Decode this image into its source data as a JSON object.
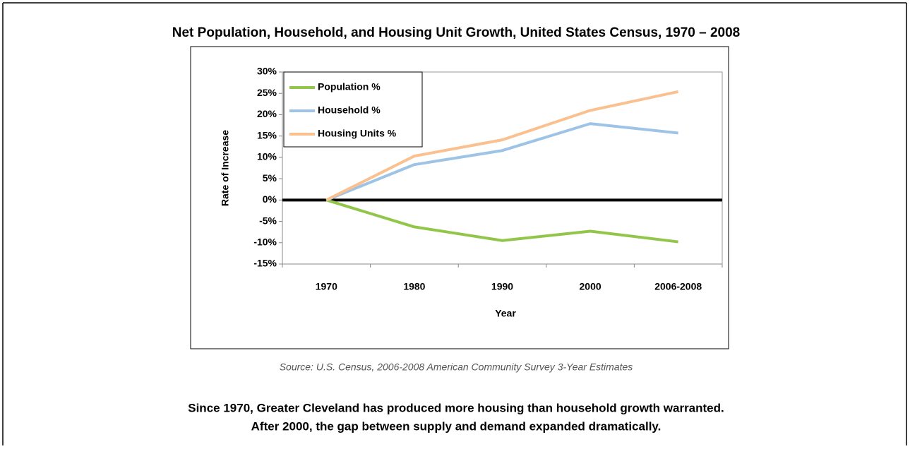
{
  "chart_data": {
    "type": "line",
    "title": "Net Population, Household, and Housing Unit Growth, United States Census, 1970 – 2008",
    "x_label": "Year",
    "y_label": "Rate of Increase",
    "categories": [
      "1970",
      "1980",
      "1990",
      "2000",
      "2006-2008"
    ],
    "series": [
      {
        "name": "Population %",
        "color": "#92c64a",
        "values": [
          0,
          -6.3,
          -9.5,
          -7.3,
          -9.8
        ]
      },
      {
        "name": "Household %",
        "color": "#9dc3e6",
        "values": [
          0,
          8.3,
          11.6,
          17.9,
          15.7
        ]
      },
      {
        "name": "Housing Units %",
        "color": "#fac090",
        "values": [
          0,
          10.3,
          14.1,
          21.0,
          25.4
        ]
      }
    ],
    "ylim": [
      -15,
      30
    ],
    "yticks": [
      {
        "value": -15,
        "label": "-15%"
      },
      {
        "value": -10,
        "label": "-10%"
      },
      {
        "value": -5,
        "label": "-5%"
      },
      {
        "value": 0,
        "label": "0%"
      },
      {
        "value": 5,
        "label": "5%"
      },
      {
        "value": 10,
        "label": "10%"
      },
      {
        "value": 15,
        "label": "15%"
      },
      {
        "value": 20,
        "label": "20%"
      },
      {
        "value": 25,
        "label": "25%"
      },
      {
        "value": 30,
        "label": "30%"
      }
    ],
    "legend": "upper left",
    "source": "Source: U.S. Census, 2006-2008 American Community Survey 3-Year Estimates",
    "caption": [
      "Since 1970, Greater Cleveland has produced more housing than household growth warranted.",
      "After 2000, the gap between supply and demand expanded dramatically."
    ]
  }
}
